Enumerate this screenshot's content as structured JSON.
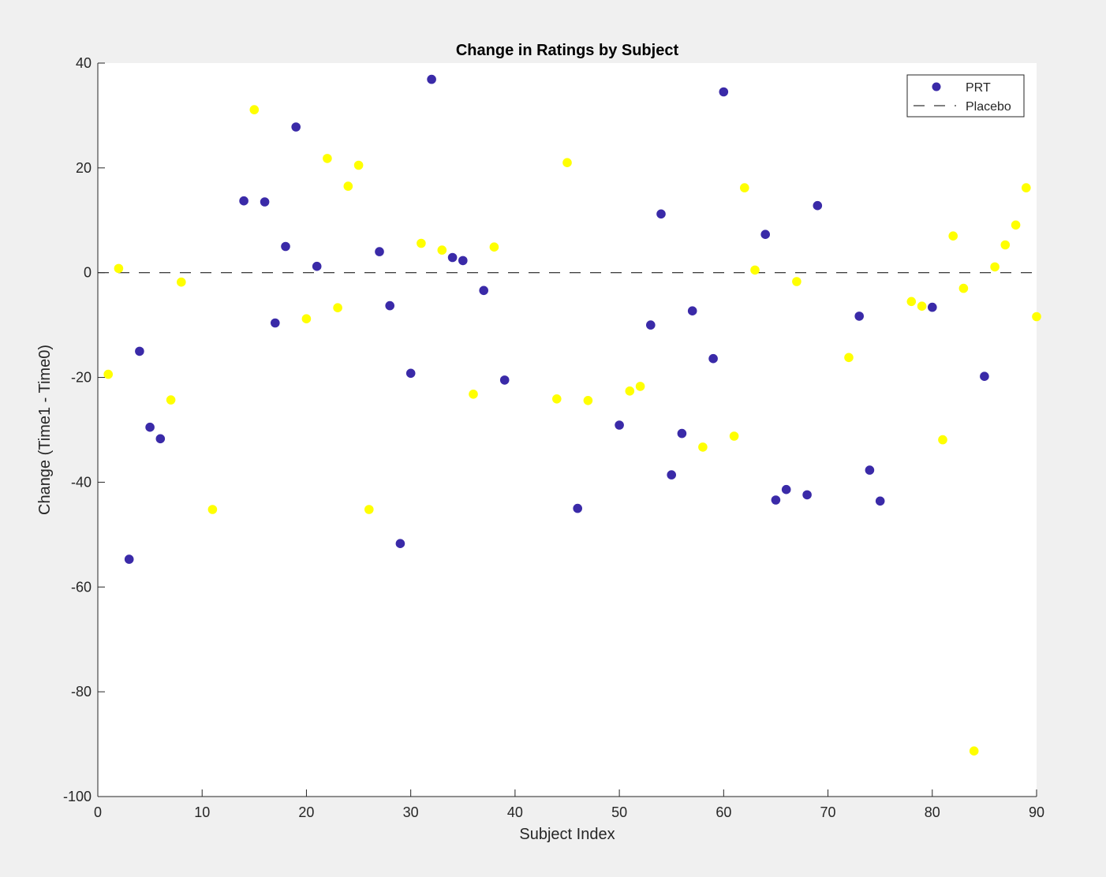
{
  "chart_data": {
    "type": "scatter",
    "title": "Change in Ratings by Subject",
    "xlabel": "Subject Index",
    "ylabel": "Change (Time1 - Time0)",
    "xlim": [
      0,
      90
    ],
    "ylim": [
      -100,
      40
    ],
    "xticks": [
      0,
      10,
      20,
      30,
      40,
      50,
      60,
      70,
      80,
      90
    ],
    "yticks": [
      -100,
      -80,
      -60,
      -40,
      -20,
      0,
      20,
      40
    ],
    "grid": false,
    "legend_placement": "top-right",
    "legend": [
      {
        "label": "PRT",
        "style": "marker"
      },
      {
        "label": "Placebo",
        "style": "dashed-line"
      }
    ],
    "reference_line": {
      "y": 0,
      "style": "dashed",
      "color": "#000000"
    },
    "series": [
      {
        "name": "PRT",
        "color": "#3a2aa8",
        "points": [
          [
            3,
            -54.7
          ],
          [
            4,
            -15
          ],
          [
            5,
            -29.5
          ],
          [
            6,
            -31.7
          ],
          [
            14,
            13.7
          ],
          [
            16,
            13.5
          ],
          [
            17,
            -9.6
          ],
          [
            18,
            5
          ],
          [
            19,
            27.8
          ],
          [
            21,
            1.2
          ],
          [
            27,
            4
          ],
          [
            28,
            -6.3
          ],
          [
            29,
            -51.7
          ],
          [
            30,
            -19.2
          ],
          [
            32,
            36.9
          ],
          [
            34,
            2.9
          ],
          [
            35,
            2.3
          ],
          [
            37,
            -3.4
          ],
          [
            39,
            -20.5
          ],
          [
            46,
            -45
          ],
          [
            50,
            -29.1
          ],
          [
            53,
            -10
          ],
          [
            54,
            11.2
          ],
          [
            55,
            -38.6
          ],
          [
            56,
            -30.7
          ],
          [
            57,
            -7.3
          ],
          [
            59,
            -16.4
          ],
          [
            60,
            34.5
          ],
          [
            64,
            7.3
          ],
          [
            65,
            -43.4
          ],
          [
            66,
            -41.4
          ],
          [
            68,
            -42.4
          ],
          [
            69,
            12.8
          ],
          [
            73,
            -8.3
          ],
          [
            74,
            -37.7
          ],
          [
            75,
            -43.6
          ],
          [
            80,
            -6.6
          ],
          [
            85,
            -19.8
          ]
        ]
      },
      {
        "color": "#ffff00",
        "points": [
          [
            1,
            -19.4
          ],
          [
            2,
            0.8
          ],
          [
            7,
            -24.3
          ],
          [
            8,
            -1.8
          ],
          [
            11,
            -45.2
          ],
          [
            15,
            31.1
          ],
          [
            20,
            -8.8
          ],
          [
            22,
            21.8
          ],
          [
            23,
            -6.7
          ],
          [
            24,
            16.5
          ],
          [
            25,
            20.5
          ],
          [
            26,
            -45.2
          ],
          [
            31,
            5.6
          ],
          [
            33,
            4.3
          ],
          [
            36,
            -23.2
          ],
          [
            38,
            4.9
          ],
          [
            44,
            -24.1
          ],
          [
            45,
            21
          ],
          [
            47,
            -24.4
          ],
          [
            51,
            -22.6
          ],
          [
            52,
            -21.7
          ],
          [
            58,
            -33.3
          ],
          [
            61,
            -31.2
          ],
          [
            62,
            16.2
          ],
          [
            63,
            0.5
          ],
          [
            67,
            -1.7
          ],
          [
            72,
            -16.2
          ],
          [
            78,
            -5.5
          ],
          [
            79,
            -6.4
          ],
          [
            81,
            -31.9
          ],
          [
            82,
            7
          ],
          [
            83,
            -3
          ],
          [
            84,
            -91.3
          ],
          [
            86,
            1.1
          ],
          [
            87,
            5.3
          ],
          [
            88,
            9.1
          ],
          [
            89,
            16.2
          ],
          [
            90,
            -8.4
          ]
        ]
      }
    ]
  }
}
